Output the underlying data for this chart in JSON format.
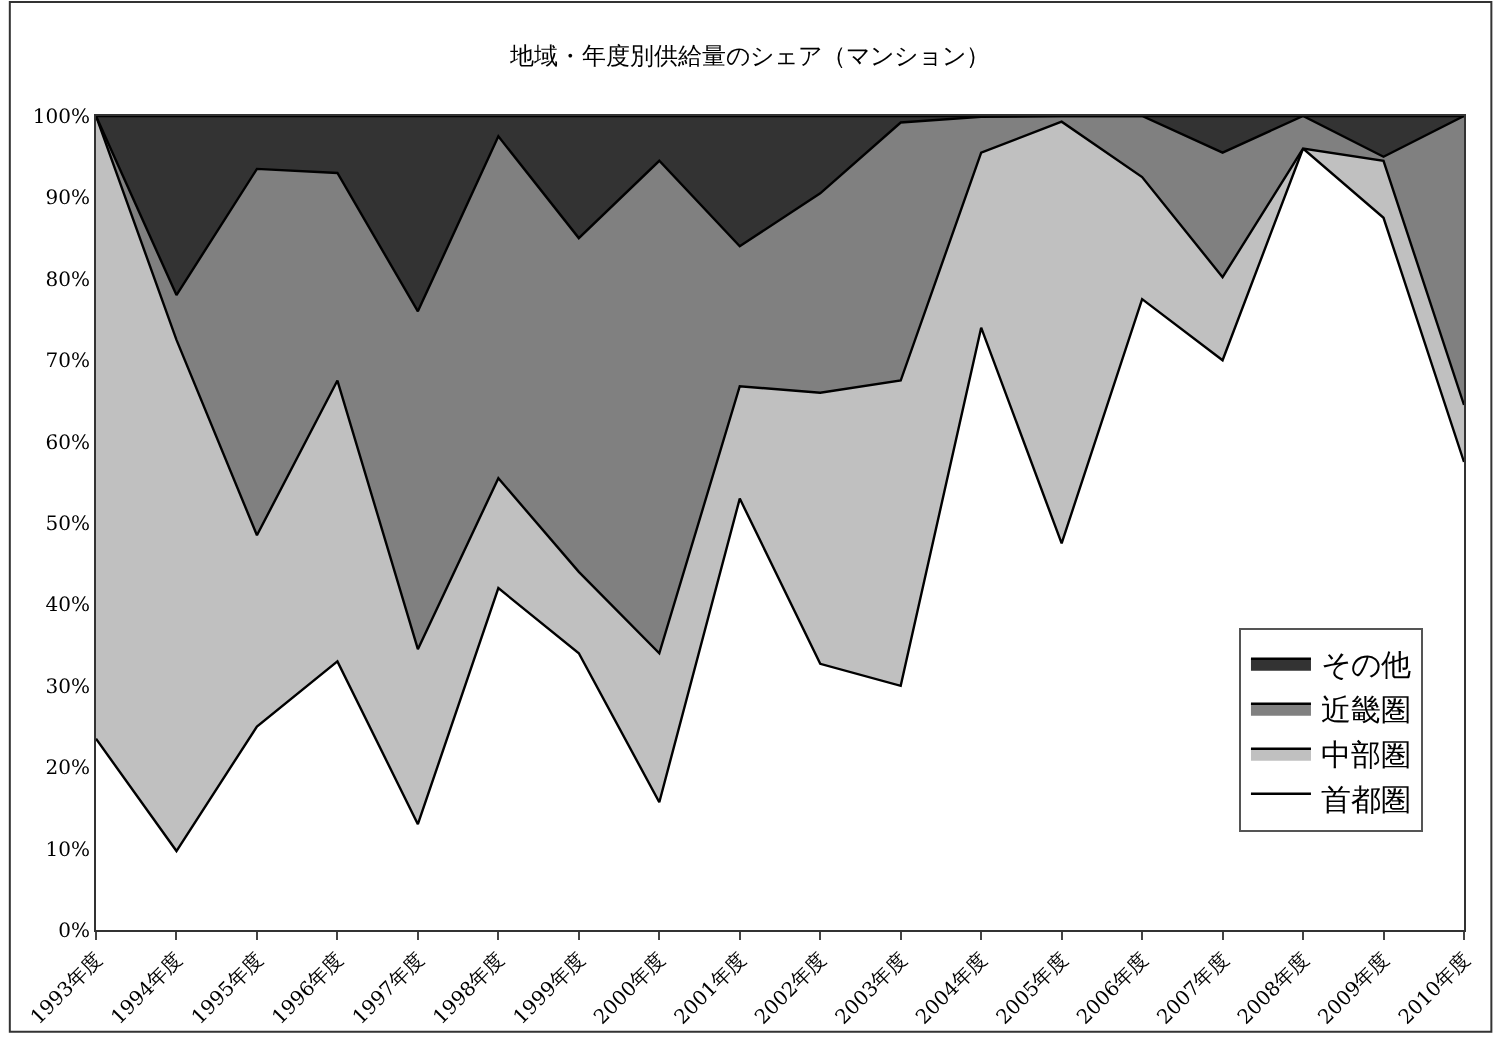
{
  "chart_data": {
    "type": "area",
    "stacked": true,
    "title": "地域・年度別供給量のシェア（マンション）",
    "categories": [
      "1993年度",
      "1994年度",
      "1995年度",
      "1996年度",
      "1997年度",
      "1998年度",
      "1999年度",
      "2000年度",
      "2001年度",
      "2002年度",
      "2003年度",
      "2004年度",
      "2005年度",
      "2006年度",
      "2007年度",
      "2008年度",
      "2009年度",
      "2010年度"
    ],
    "series": [
      {
        "name": "首都圏",
        "color": "#ffffff",
        "values": [
          23.5,
          9.7,
          25,
          33,
          13,
          42,
          34,
          15.7,
          53,
          32.7,
          30,
          74,
          47.5,
          77.5,
          70,
          96,
          87.5,
          57.5
        ]
      },
      {
        "name": "中部圏",
        "color": "#c0c0c0",
        "values": [
          76.5,
          62.8,
          23.5,
          34.5,
          21.5,
          13.5,
          10,
          18.3,
          13.8,
          33.3,
          37.5,
          21.5,
          51.8,
          15,
          10.2,
          0,
          7,
          7
        ]
      },
      {
        "name": "近畿圏",
        "color": "#808080",
        "values": [
          0,
          5.5,
          45,
          25.5,
          41.5,
          42,
          41,
          60.5,
          17.2,
          24.5,
          31.7,
          4.4,
          0.7,
          7.5,
          15.3,
          4,
          0.5,
          35.5
        ]
      },
      {
        "name": "その他",
        "color": "#333333",
        "values": [
          0,
          22,
          6.5,
          7,
          24,
          2.5,
          15,
          5.5,
          16,
          9.5,
          0.8,
          0.1,
          0,
          0,
          4.5,
          0,
          5,
          0
        ]
      }
    ],
    "ylim": [
      0,
      100
    ],
    "yticks": [
      {
        "value": 0,
        "label": "0%"
      },
      {
        "value": 10,
        "label": "10%"
      },
      {
        "value": 20,
        "label": "20%"
      },
      {
        "value": 30,
        "label": "30%"
      },
      {
        "value": 40,
        "label": "40%"
      },
      {
        "value": 50,
        "label": "50%"
      },
      {
        "value": 60,
        "label": "60%"
      },
      {
        "value": 70,
        "label": "70%"
      },
      {
        "value": 80,
        "label": "80%"
      },
      {
        "value": 90,
        "label": "90%"
      },
      {
        "value": 100,
        "label": "100%"
      }
    ],
    "legend": "bottom right"
  }
}
